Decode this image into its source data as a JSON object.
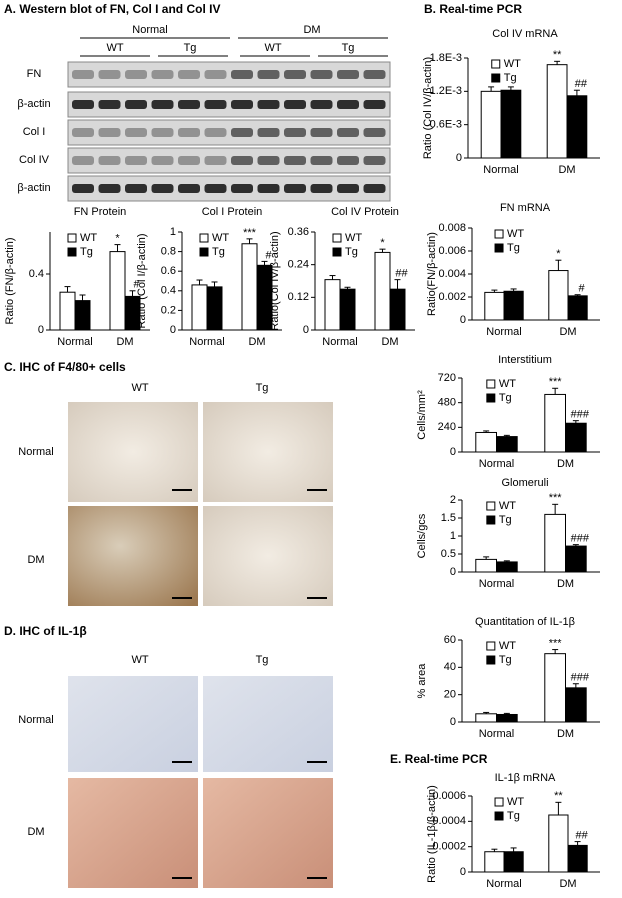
{
  "panels": {
    "a": {
      "title": "A. Western blot of FN, Col I and Col IV",
      "groups": [
        "Normal",
        "DM"
      ],
      "genotypes": [
        "WT",
        "Tg",
        "WT",
        "Tg"
      ],
      "rows": [
        "FN",
        "β-actin",
        "Col I",
        "Col IV",
        "β-actin"
      ]
    },
    "b": {
      "title": "B. Real-time PCR"
    },
    "c": {
      "title": "C. IHC of  F4/80+ cells",
      "columns": [
        "WT",
        "Tg"
      ],
      "rows": [
        "Normal",
        "DM"
      ]
    },
    "d": {
      "title": "D. IHC of  IL-1β",
      "columns": [
        "WT",
        "Tg"
      ],
      "rows": [
        "Normal",
        "DM"
      ]
    },
    "e": {
      "title": "E. Real-time PCR"
    }
  },
  "chart_data": [
    {
      "type": "bar",
      "title": "Col IV mRNA",
      "ylabel": "Ratio (Col IV/β-actin)",
      "categories": [
        "Normal",
        "DM"
      ],
      "series": [
        {
          "name": "WT",
          "color": "#ffffff",
          "values": [
            0.0012,
            0.00168
          ],
          "errors": [
            8e-05,
            6e-05
          ],
          "annotations": [
            null,
            "**"
          ]
        },
        {
          "name": "Tg",
          "color": "#000000",
          "values": [
            0.00122,
            0.00112
          ],
          "errors": [
            6e-05,
            0.0001
          ],
          "annotations": [
            null,
            "##"
          ]
        }
      ],
      "ylim": [
        0,
        0.0018
      ],
      "yticks": [
        0,
        {
          "value": 0.0006,
          "label": "0.6E-3"
        },
        {
          "value": 0.0012,
          "label": "1.2E-3"
        },
        {
          "value": 0.0018,
          "label": "1.8E-3"
        }
      ]
    },
    {
      "type": "bar",
      "title": "FN Protein",
      "ylabel": "Ratio (FN/β-actin)",
      "categories": [
        "Normal",
        "DM"
      ],
      "series": [
        {
          "name": "WT",
          "color": "#ffffff",
          "values": [
            0.27,
            0.56
          ],
          "errors": [
            0.04,
            0.05
          ],
          "annotations": [
            null,
            "*"
          ]
        },
        {
          "name": "Tg",
          "color": "#000000",
          "values": [
            0.21,
            0.24
          ],
          "errors": [
            0.04,
            0.04
          ],
          "annotations": [
            null,
            "#"
          ]
        }
      ],
      "ylim": [
        0,
        0.7
      ],
      "yticks": [
        0,
        0.4
      ]
    },
    {
      "type": "bar",
      "title": "Col I Protein",
      "ylabel": "Ratio (Col I/β-actin)",
      "categories": [
        "Normal",
        "DM"
      ],
      "series": [
        {
          "name": "WT",
          "color": "#ffffff",
          "values": [
            0.46,
            0.88
          ],
          "errors": [
            0.05,
            0.05
          ],
          "annotations": [
            null,
            "***"
          ]
        },
        {
          "name": "Tg",
          "color": "#000000",
          "values": [
            0.44,
            0.66
          ],
          "errors": [
            0.05,
            0.04
          ],
          "annotations": [
            null,
            "#"
          ]
        }
      ],
      "ylim": [
        0,
        1
      ],
      "yticks": [
        0,
        0.2,
        0.4,
        0.6,
        0.8,
        1
      ]
    },
    {
      "type": "bar",
      "title": "Col IV Protein",
      "ylabel": "Ratio(Col IV/β-actin)",
      "categories": [
        "Normal",
        "DM"
      ],
      "series": [
        {
          "name": "WT",
          "color": "#ffffff",
          "values": [
            0.185,
            0.285
          ],
          "errors": [
            0.015,
            0.012
          ],
          "annotations": [
            null,
            "*"
          ]
        },
        {
          "name": "Tg",
          "color": "#000000",
          "values": [
            0.15,
            0.15
          ],
          "errors": [
            0.007,
            0.035
          ],
          "annotations": [
            null,
            "##"
          ]
        }
      ],
      "ylim": [
        0,
        0.36
      ],
      "yticks": [
        0,
        0.12,
        0.24,
        0.36
      ]
    },
    {
      "type": "bar",
      "title": "FN mRNA",
      "ylabel": "Ratio(FN/β-actin)",
      "categories": [
        "Normal",
        "DM"
      ],
      "series": [
        {
          "name": "WT",
          "color": "#ffffff",
          "values": [
            0.0024,
            0.0043
          ],
          "errors": [
            0.0002,
            0.0009
          ],
          "annotations": [
            null,
            "*"
          ]
        },
        {
          "name": "Tg",
          "color": "#000000",
          "values": [
            0.0025,
            0.0021
          ],
          "errors": [
            0.0002,
            0.0001
          ],
          "annotations": [
            null,
            "#"
          ]
        }
      ],
      "ylim": [
        0,
        0.008
      ],
      "yticks": [
        0,
        0.002,
        0.004,
        0.006,
        0.008
      ]
    },
    {
      "type": "bar",
      "title": "Interstitium",
      "ylabel": "Cells/mm²",
      "categories": [
        "Normal",
        "DM"
      ],
      "series": [
        {
          "name": "WT",
          "color": "#ffffff",
          "values": [
            190,
            560
          ],
          "errors": [
            15,
            60
          ],
          "annotations": [
            null,
            "***"
          ]
        },
        {
          "name": "Tg",
          "color": "#000000",
          "values": [
            150,
            280
          ],
          "errors": [
            12,
            25
          ],
          "annotations": [
            null,
            "###"
          ]
        }
      ],
      "ylim": [
        0,
        720
      ],
      "yticks": [
        0,
        240,
        480,
        720
      ]
    },
    {
      "type": "bar",
      "title": "Glomeruli",
      "ylabel": "Cells/gcs",
      "categories": [
        "Normal",
        "DM"
      ],
      "series": [
        {
          "name": "WT",
          "color": "#ffffff",
          "values": [
            0.35,
            1.6
          ],
          "errors": [
            0.07,
            0.28
          ],
          "annotations": [
            null,
            "***"
          ]
        },
        {
          "name": "Tg",
          "color": "#000000",
          "values": [
            0.28,
            0.72
          ],
          "errors": [
            0.03,
            0.04
          ],
          "annotations": [
            null,
            "###"
          ]
        }
      ],
      "ylim": [
        0,
        2
      ],
      "yticks": [
        0,
        0.5,
        1,
        1.5,
        2
      ]
    },
    {
      "type": "bar",
      "title": "Quantitation of IL-1β",
      "ylabel": "% area",
      "categories": [
        "Normal",
        "DM"
      ],
      "series": [
        {
          "name": "WT",
          "color": "#ffffff",
          "values": [
            6,
            50
          ],
          "errors": [
            1,
            3
          ],
          "annotations": [
            null,
            "***"
          ]
        },
        {
          "name": "Tg",
          "color": "#000000",
          "values": [
            5.5,
            25
          ],
          "errors": [
            0.8,
            3
          ],
          "annotations": [
            null,
            "###"
          ]
        }
      ],
      "ylim": [
        0,
        60
      ],
      "yticks": [
        0,
        20,
        40,
        60
      ]
    },
    {
      "type": "bar",
      "title": "IL-1β mRNA",
      "ylabel": "Ratio (IL-1β/β-actin)",
      "categories": [
        "Normal",
        "DM"
      ],
      "series": [
        {
          "name": "WT",
          "color": "#ffffff",
          "values": [
            0.00016,
            0.00045
          ],
          "errors": [
            2e-05,
            0.0001
          ],
          "annotations": [
            null,
            "**"
          ]
        },
        {
          "name": "Tg",
          "color": "#000000",
          "values": [
            0.00016,
            0.00021
          ],
          "errors": [
            3e-05,
            3e-05
          ],
          "annotations": [
            null,
            "##"
          ]
        }
      ],
      "ylim": [
        0,
        0.0006
      ],
      "yticks": [
        0,
        0.0002,
        0.0004,
        0.0006
      ]
    }
  ]
}
